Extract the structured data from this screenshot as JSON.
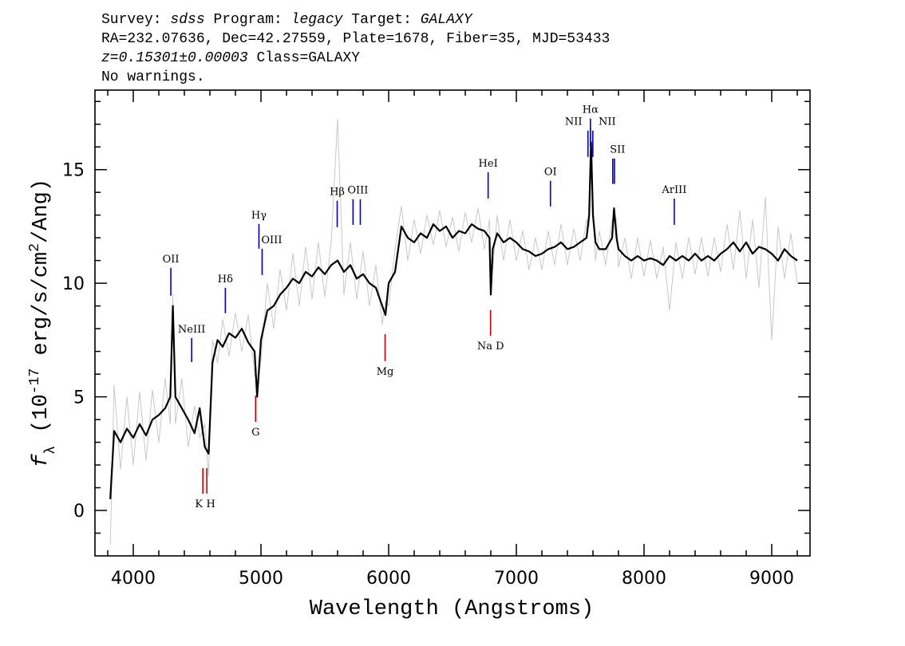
{
  "chart_data": {
    "type": "line",
    "title_lines": [
      [
        {
          "text": "Survey: "
        },
        {
          "text": "sdss",
          "italic": true
        },
        {
          "text": " Program: "
        },
        {
          "text": "legacy",
          "italic": true
        },
        {
          "text": " Target: "
        },
        {
          "text": "GALAXY",
          "italic": true
        }
      ],
      [
        {
          "text": "RA=232.07636, Dec=42.27559, Plate=1678, Fiber=35, MJD=53433"
        }
      ],
      [
        {
          "text": "z=0.15301±0.00003",
          "italic": true
        },
        {
          "text": " Class=GALAXY"
        }
      ],
      [
        {
          "text": "No warnings."
        }
      ]
    ],
    "xlabel": "Wavelength (Angstroms)",
    "ylabel": [
      {
        "text": "f",
        "style": "italic"
      },
      {
        "text": "λ",
        "style": "sub"
      },
      {
        "text": " (10"
      },
      {
        "text": "-17",
        "style": "sup"
      },
      {
        "text": " erg/s/cm"
      },
      {
        "text": "2",
        "style": "sup"
      },
      {
        "text": "/Ang)"
      }
    ],
    "xlim": [
      3700,
      9300
    ],
    "ylim": [
      -2,
      18.5
    ],
    "xticks": [
      4000,
      5000,
      6000,
      7000,
      8000,
      9000
    ],
    "yticks": [
      0,
      5,
      10,
      15
    ],
    "xminorticks": [
      3800,
      4200,
      4400,
      4600,
      4800,
      5200,
      5400,
      5600,
      5800,
      6200,
      6400,
      6600,
      6800,
      7200,
      7400,
      7600,
      7800,
      8200,
      8400,
      8600,
      8800,
      9200
    ],
    "yminorticks": [
      -1,
      1,
      2,
      3,
      4,
      6,
      7,
      8,
      9,
      11,
      12,
      13,
      14,
      16,
      17,
      18
    ],
    "x": [
      3820,
      3850,
      3900,
      3950,
      4000,
      4050,
      4100,
      4150,
      4200,
      4250,
      4290,
      4310,
      4330,
      4380,
      4430,
      4480,
      4520,
      4560,
      4590,
      4620,
      4660,
      4700,
      4750,
      4800,
      4850,
      4900,
      4950,
      4970,
      5000,
      5050,
      5100,
      5150,
      5200,
      5250,
      5300,
      5350,
      5400,
      5450,
      5500,
      5550,
      5600,
      5650,
      5700,
      5750,
      5800,
      5850,
      5900,
      5950,
      5975,
      6000,
      6050,
      6100,
      6150,
      6200,
      6250,
      6300,
      6350,
      6400,
      6450,
      6500,
      6550,
      6600,
      6650,
      6700,
      6750,
      6790,
      6800,
      6815,
      6850,
      6900,
      6950,
      7000,
      7050,
      7100,
      7150,
      7200,
      7250,
      7300,
      7350,
      7400,
      7450,
      7500,
      7550,
      7570,
      7585,
      7600,
      7620,
      7650,
      7700,
      7750,
      7765,
      7785,
      7800,
      7850,
      7900,
      7950,
      8000,
      8050,
      8100,
      8150,
      8200,
      8250,
      8300,
      8350,
      8400,
      8450,
      8500,
      8550,
      8600,
      8650,
      8700,
      8750,
      8800,
      8850,
      8900,
      8950,
      9000,
      9050,
      9100,
      9150,
      9200
    ],
    "series": [
      {
        "color": "#c8c8c8",
        "width": 1,
        "values": [
          -1.5,
          5.5,
          1.8,
          5.0,
          2.0,
          5.2,
          2.2,
          5.3,
          3.0,
          5.8,
          3.8,
          9.5,
          3.8,
          5.8,
          2.8,
          4.6,
          3.2,
          3.8,
          1.5,
          7.5,
          6.5,
          8.4,
          6.8,
          8.7,
          7.0,
          8.6,
          6.0,
          5.5,
          6.6,
          10.0,
          8.0,
          10.6,
          8.8,
          11.3,
          9.0,
          11.6,
          9.3,
          11.8,
          9.4,
          11.8,
          17.2,
          9.5,
          11.8,
          9.3,
          11.4,
          9.0,
          10.8,
          8.2,
          9.2,
          9.0,
          11.5,
          13.4,
          11.0,
          12.8,
          11.3,
          13.0,
          11.7,
          13.2,
          11.6,
          12.9,
          11.4,
          13.1,
          11.8,
          13.3,
          11.5,
          12.8,
          9.8,
          10.6,
          13.0,
          11.0,
          12.8,
          11.0,
          12.3,
          10.6,
          12.0,
          10.6,
          12.3,
          10.8,
          12.6,
          10.8,
          12.4,
          11.0,
          12.8,
          12.5,
          16.8,
          13.6,
          11.0,
          12.3,
          10.8,
          12.8,
          13.0,
          12.8,
          10.7,
          12.0,
          10.2,
          12.0,
          10.3,
          11.9,
          10.2,
          11.6,
          8.8,
          11.8,
          10.2,
          12.0,
          10.4,
          12.0,
          10.3,
          12.0,
          10.5,
          12.6,
          10.6,
          13.2,
          10.2,
          12.8,
          9.8,
          13.8,
          7.5,
          12.5,
          10.2,
          12.2,
          10.0
        ]
      },
      {
        "color": "#000000",
        "width": 2.2,
        "values": [
          0.5,
          3.5,
          3.0,
          3.6,
          3.2,
          3.8,
          3.3,
          4.0,
          4.2,
          4.5,
          5.0,
          9.0,
          5.0,
          4.5,
          4.0,
          3.4,
          4.5,
          2.8,
          2.5,
          6.5,
          7.5,
          7.2,
          7.8,
          7.6,
          8.0,
          7.4,
          7.0,
          5.0,
          7.5,
          8.8,
          9.0,
          9.5,
          9.8,
          10.2,
          10.0,
          10.5,
          10.3,
          10.7,
          10.4,
          10.8,
          11.0,
          10.5,
          10.8,
          10.2,
          10.4,
          10.0,
          9.8,
          9.0,
          8.6,
          10.0,
          10.5,
          12.5,
          12.0,
          11.8,
          12.2,
          12.0,
          12.6,
          12.3,
          12.5,
          12.0,
          12.3,
          12.2,
          12.6,
          12.4,
          12.3,
          12.0,
          9.5,
          11.5,
          12.2,
          11.8,
          12.0,
          11.8,
          11.5,
          11.4,
          11.2,
          11.3,
          11.5,
          11.6,
          11.8,
          11.5,
          11.6,
          11.8,
          12.0,
          13.0,
          16.2,
          13.0,
          11.8,
          11.5,
          11.5,
          12.0,
          13.3,
          12.0,
          11.5,
          11.2,
          11.0,
          11.2,
          11.0,
          11.1,
          11.0,
          10.8,
          11.2,
          11.0,
          11.2,
          11.0,
          11.3,
          11.0,
          11.2,
          11.0,
          11.3,
          11.5,
          11.8,
          11.4,
          11.8,
          11.3,
          11.6,
          11.5,
          11.3,
          11.0,
          11.5,
          11.2,
          11.0
        ]
      }
    ],
    "lines": [
      {
        "label": "OII",
        "wavelength": 4294,
        "ymin": 9.45,
        "ymax": 10.68,
        "color": "#0000cc"
      },
      {
        "label": "NeIII",
        "wavelength": 4457,
        "ymin": 6.53,
        "ymax": 7.59,
        "color": "#0000cc"
      },
      {
        "label": "Hδ",
        "wavelength": 4721,
        "ymin": 8.68,
        "ymax": 9.8,
        "color": "#0000cc"
      },
      {
        "label": "Hγ",
        "wavelength": 4984,
        "ymin": 11.52,
        "ymax": 12.61,
        "color": "#0000cc"
      },
      {
        "label": "OIII",
        "wavelength": 5009,
        "ymin": 10.36,
        "ymax": 11.52,
        "color": "#0000cc"
      },
      {
        "label": "Hβ",
        "wavelength": 5597,
        "ymin": 12.47,
        "ymax": 13.63,
        "color": "#0000cc"
      },
      {
        "label": "OIII",
        "wavelength": 5721,
        "ymin": 12.57,
        "ymax": 13.7,
        "color": "#0000cc"
      },
      {
        "label": null,
        "wavelength": 5778,
        "ymin": 12.57,
        "ymax": 13.7,
        "color": "#0000cc"
      },
      {
        "label": "HeI",
        "wavelength": 6779,
        "ymin": 13.73,
        "ymax": 14.89,
        "color": "#0000cc"
      },
      {
        "label": "OI",
        "wavelength": 7267,
        "ymin": 13.38,
        "ymax": 14.51,
        "color": "#0000cc"
      },
      {
        "label": "NII",
        "wavelength": 7561,
        "ymin": 15.56,
        "ymax": 16.72,
        "color": "#0000cc"
      },
      {
        "label": "Hα",
        "wavelength": 7580,
        "ymin": 16.02,
        "ymax": 17.25,
        "color": "#0000cc"
      },
      {
        "label": "NII",
        "wavelength": 7599,
        "ymin": 15.56,
        "ymax": 16.72,
        "color": "#0000cc"
      },
      {
        "label": "SII",
        "wavelength": 7755,
        "ymin": 14.37,
        "ymax": 15.49,
        "color": "#0000cc"
      },
      {
        "label": null,
        "wavelength": 7768,
        "ymin": 14.37,
        "ymax": 15.49,
        "color": "#0000cc"
      },
      {
        "label": "ArIII",
        "wavelength": 8237,
        "ymin": 12.57,
        "ymax": 13.73,
        "color": "#0000cc"
      },
      {
        "label": "K",
        "wavelength": 4545,
        "ymin": 0.74,
        "ymax": 1.86,
        "color": "#cc0000"
      },
      {
        "label": "H",
        "wavelength": 4576,
        "ymin": 0.74,
        "ymax": 1.86,
        "color": "#cc0000"
      },
      {
        "label": "G",
        "wavelength": 4958,
        "ymin": 3.9,
        "ymax": 5.06,
        "color": "#cc0000"
      },
      {
        "label": "Mg",
        "wavelength": 5972,
        "ymin": 6.57,
        "ymax": 7.76,
        "color": "#cc0000"
      },
      {
        "label": "Na D",
        "wavelength": 6798,
        "ymin": 7.69,
        "ymax": 8.82,
        "color": "#cc0000"
      }
    ]
  }
}
